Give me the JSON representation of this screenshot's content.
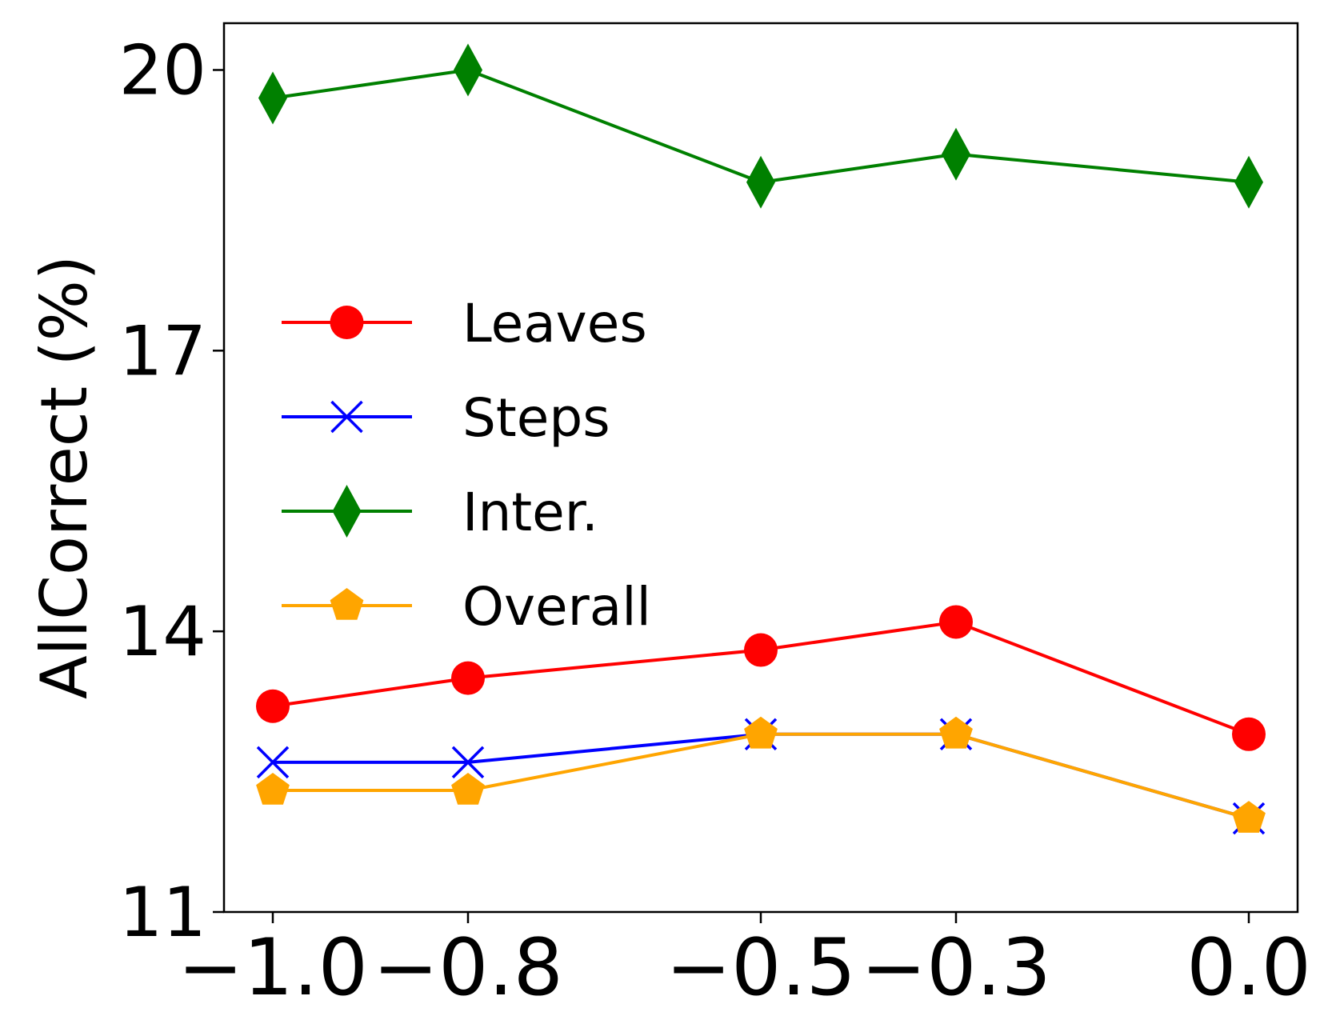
{
  "chart_data": {
    "type": "line",
    "title": "",
    "xlabel": "",
    "ylabel": "AllCorrect (%)",
    "x": [
      -1.0,
      -0.8,
      -0.5,
      -0.3,
      0.0
    ],
    "x_tick_labels": [
      "−1.0",
      "−0.8",
      "−0.5",
      "−0.3",
      "0.0"
    ],
    "y_ticks": [
      11,
      14,
      17,
      20
    ],
    "y_tick_labels": [
      "11",
      "14",
      "17",
      "20"
    ],
    "xlim": [
      -1.05,
      0.05
    ],
    "ylim": [
      11,
      20.5
    ],
    "grid": false,
    "legend_position": "center-left",
    "series": [
      {
        "name": "Leaves",
        "color": "#ff0000",
        "marker": "circle",
        "values": [
          13.2,
          13.5,
          13.8,
          14.1,
          12.9
        ]
      },
      {
        "name": "Steps",
        "color": "#0000ff",
        "marker": "x",
        "values": [
          12.6,
          12.6,
          12.9,
          12.9,
          12.0
        ]
      },
      {
        "name": "Inter.",
        "color": "#008000",
        "marker": "diamond",
        "values": [
          19.7,
          20.0,
          18.8,
          19.1,
          18.8
        ]
      },
      {
        "name": "Overall",
        "color": "#ffa500",
        "marker": "pentagon",
        "values": [
          12.3,
          12.3,
          12.9,
          12.9,
          12.0
        ]
      }
    ]
  }
}
